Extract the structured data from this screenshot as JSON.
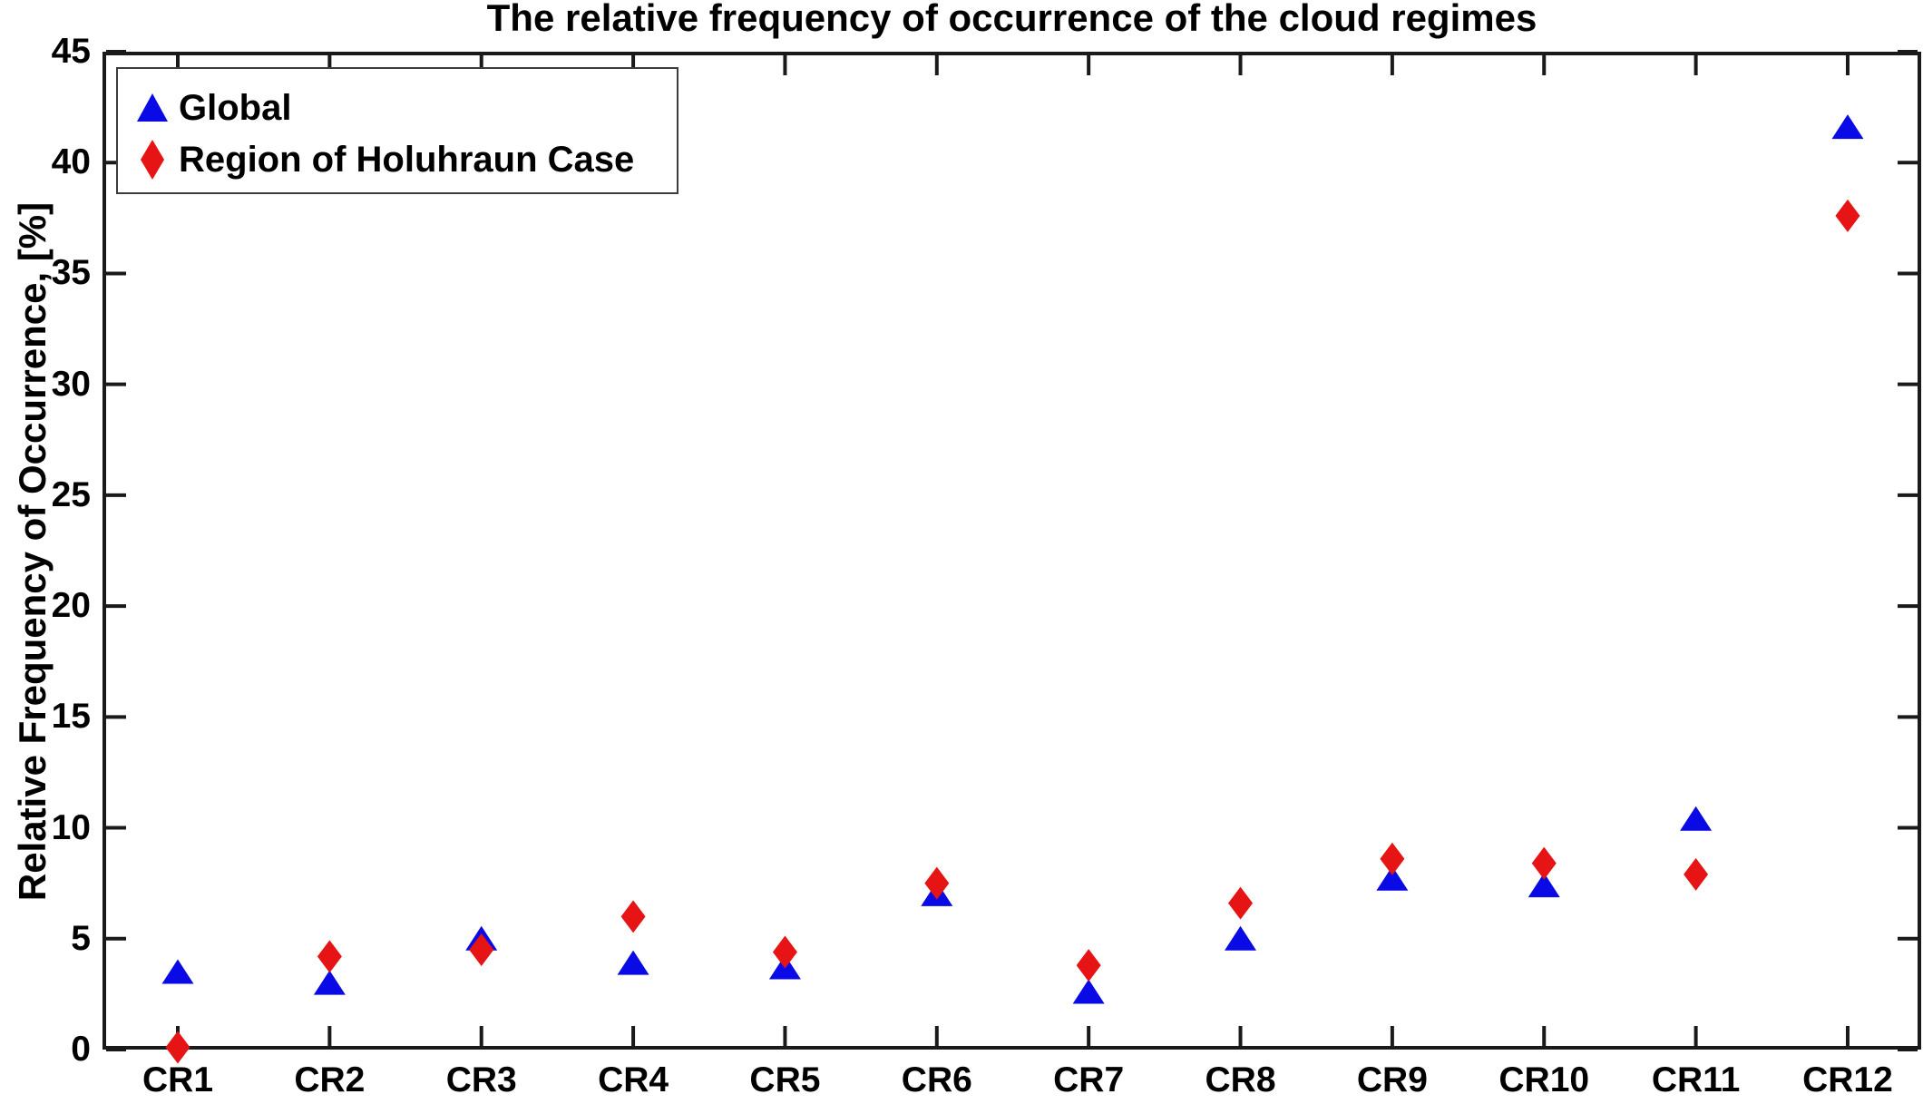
{
  "chart_data": {
    "type": "scatter",
    "title": "The relative frequency of occurrence of the cloud regimes",
    "ylabel": "Relative Frequency of Occurrence, [%]",
    "xlabel": "",
    "categories": [
      "CR1",
      "CR2",
      "CR3",
      "CR4",
      "CR5",
      "CR6",
      "CR7",
      "CR8",
      "CR9",
      "CR10",
      "CR11",
      "CR12"
    ],
    "series": [
      {
        "name": "Global",
        "marker": "triangle",
        "color": "#0a0ae6",
        "values": [
          3.5,
          3.0,
          5.0,
          3.9,
          3.7,
          7.0,
          2.6,
          5.0,
          7.7,
          7.4,
          10.4,
          41.6
        ]
      },
      {
        "name": "Region of Holuhraun Case",
        "marker": "diamond",
        "color": "#e61414",
        "values": [
          0.1,
          4.2,
          4.5,
          6.0,
          4.4,
          7.5,
          3.8,
          6.6,
          8.6,
          8.4,
          7.9,
          37.6
        ]
      }
    ],
    "ylim": [
      0,
      45
    ],
    "y_ticks": [
      0,
      5,
      10,
      15,
      20,
      25,
      30,
      35,
      40,
      45
    ],
    "grid": false,
    "legend_position": "top-left",
    "axis_color": "#1a1a1a",
    "text_color": "#000000",
    "background": "#ffffff"
  }
}
